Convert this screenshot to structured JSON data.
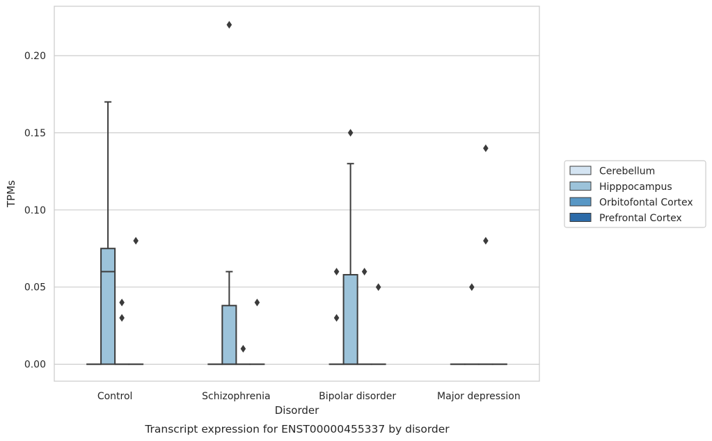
{
  "chart_data": {
    "type": "boxplot",
    "title": "",
    "caption": "Transcript expression for ENST00000455337 by disorder",
    "xlabel": "Disorder",
    "ylabel": "TPMs",
    "ylim": [
      -0.011,
      0.232
    ],
    "y_ticks": [
      0.0,
      0.05,
      0.1,
      0.15,
      0.2
    ],
    "y_tick_labels": [
      "0.00",
      "0.05",
      "0.10",
      "0.15",
      "0.20"
    ],
    "grid": "horizontal",
    "legend_position": "right",
    "categories": [
      "Control",
      "Schizophrenia",
      "Bipolar disorder",
      "Major depression"
    ],
    "series": [
      {
        "name": "Cerebellum",
        "color": "#d4e4f2",
        "boxes": [
          {
            "category": "Control",
            "q1": 0,
            "median": 0,
            "q3": 0,
            "whisker_low": 0,
            "whisker_high": 0,
            "outliers": []
          },
          {
            "category": "Schizophrenia",
            "q1": 0,
            "median": 0,
            "q3": 0,
            "whisker_low": 0,
            "whisker_high": 0,
            "outliers": []
          },
          {
            "category": "Bipolar disorder",
            "q1": 0,
            "median": 0,
            "q3": 0,
            "whisker_low": 0,
            "whisker_high": 0,
            "outliers": [
              0.03,
              0.06
            ]
          },
          {
            "category": "Major depression",
            "q1": 0,
            "median": 0,
            "q3": 0,
            "whisker_low": 0,
            "whisker_high": 0,
            "outliers": []
          }
        ]
      },
      {
        "name": "Hipppocampus",
        "color": "#9cc3da",
        "boxes": [
          {
            "category": "Control",
            "q1": 0,
            "median": 0.06,
            "q3": 0.075,
            "whisker_low": 0,
            "whisker_high": 0.17,
            "outliers": []
          },
          {
            "category": "Schizophrenia",
            "q1": 0,
            "median": 0,
            "q3": 0.038,
            "whisker_low": 0,
            "whisker_high": 0.06,
            "outliers": [
              0.22
            ]
          },
          {
            "category": "Bipolar disorder",
            "q1": 0,
            "median": 0,
            "q3": 0.058,
            "whisker_low": 0,
            "whisker_high": 0.13,
            "outliers": [
              0.15
            ]
          },
          {
            "category": "Major depression",
            "q1": 0,
            "median": 0,
            "q3": 0,
            "whisker_low": 0,
            "whisker_high": 0,
            "outliers": [
              0.05
            ]
          }
        ]
      },
      {
        "name": "Orbitofontal Cortex",
        "color": "#5897c5",
        "boxes": [
          {
            "category": "Control",
            "q1": 0,
            "median": 0,
            "q3": 0,
            "whisker_low": 0,
            "whisker_high": 0,
            "outliers": [
              0.04,
              0.03
            ]
          },
          {
            "category": "Schizophrenia",
            "q1": 0,
            "median": 0,
            "q3": 0,
            "whisker_low": 0,
            "whisker_high": 0,
            "outliers": [
              0.01
            ]
          },
          {
            "category": "Bipolar disorder",
            "q1": 0,
            "median": 0,
            "q3": 0,
            "whisker_low": 0,
            "whisker_high": 0,
            "outliers": [
              0.06
            ]
          },
          {
            "category": "Major depression",
            "q1": 0,
            "median": 0,
            "q3": 0,
            "whisker_low": 0,
            "whisker_high": 0,
            "outliers": [
              0.14,
              0.08
            ]
          }
        ]
      },
      {
        "name": "Prefrontal Cortex",
        "color": "#2c6ba8",
        "boxes": [
          {
            "category": "Control",
            "q1": 0,
            "median": 0,
            "q3": 0,
            "whisker_low": 0,
            "whisker_high": 0,
            "outliers": [
              0.08
            ]
          },
          {
            "category": "Schizophrenia",
            "q1": 0,
            "median": 0,
            "q3": 0,
            "whisker_low": 0,
            "whisker_high": 0,
            "outliers": [
              0.04
            ]
          },
          {
            "category": "Bipolar disorder",
            "q1": 0,
            "median": 0,
            "q3": 0,
            "whisker_low": 0,
            "whisker_high": 0,
            "outliers": [
              0.05
            ]
          },
          {
            "category": "Major depression",
            "q1": 0,
            "median": 0,
            "q3": 0,
            "whisker_low": 0,
            "whisker_high": 0,
            "outliers": []
          }
        ]
      }
    ]
  }
}
